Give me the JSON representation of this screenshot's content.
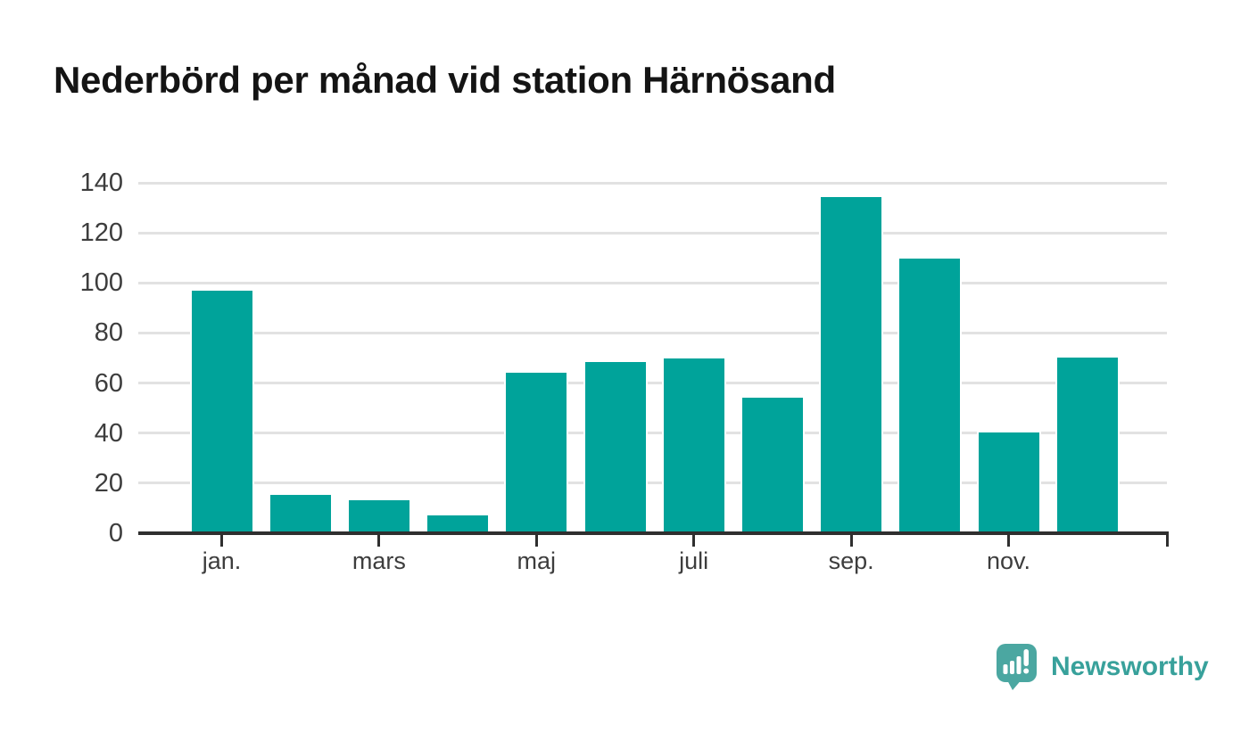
{
  "chart_data": {
    "type": "bar",
    "title": "Nederbörd per månad vid station Härnösand",
    "x_tick_labels": [
      "jan.",
      "mars",
      "maj",
      "juli",
      "sep.",
      "nov."
    ],
    "x_tick_positions": [
      0,
      2,
      4,
      6,
      8,
      10
    ],
    "values": [
      97.5,
      16,
      14,
      8,
      65,
      69,
      70.5,
      55,
      135,
      110.5,
      41,
      71
    ],
    "bar_count": 12,
    "ylim": [
      0,
      140
    ],
    "yticks": [
      0,
      20,
      40,
      60,
      80,
      100,
      120,
      140
    ],
    "xlabel": "",
    "ylabel": "",
    "grid": "horizontal",
    "legend": "none",
    "colors": {
      "bar": "#00a39a",
      "axis": "#2f2f2f",
      "grid": "#e2e2e2",
      "tick_label": "#3d3d3d",
      "title": "#141414",
      "logo_icon": "#4ba7a1",
      "logo_text": "#38a19b"
    }
  },
  "branding": {
    "logo_text": "Newsworthy"
  }
}
